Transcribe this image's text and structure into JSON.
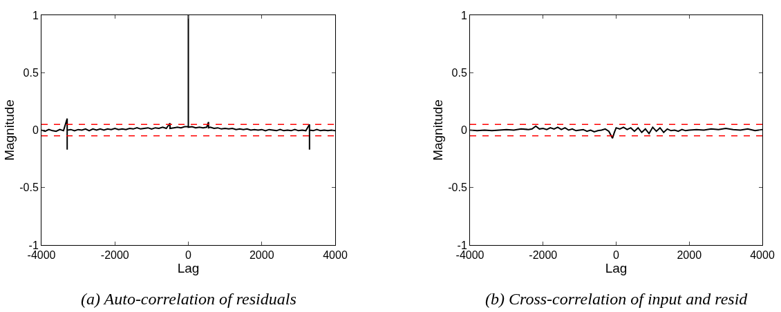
{
  "chart_data": [
    {
      "type": "line",
      "xlabel": "Lag",
      "ylabel": "Magnitude",
      "xlim": [
        -4000,
        4000
      ],
      "ylim": [
        -1,
        1
      ],
      "xticks": [
        -4000,
        -2000,
        0,
        2000,
        4000
      ],
      "yticks": [
        -1,
        -0.5,
        0,
        0.5,
        1
      ],
      "grid": false,
      "marker": "none",
      "line_style": "solid",
      "series": [
        {
          "color": "#000000",
          "x": [
            -4000,
            -3900,
            -3800,
            -3700,
            -3600,
            -3500,
            -3400,
            -3300,
            -3300,
            -3300,
            -3200,
            -3100,
            -3000,
            -2900,
            -2800,
            -2700,
            -2600,
            -2500,
            -2400,
            -2300,
            -2200,
            -2100,
            -2000,
            -1900,
            -1800,
            -1700,
            -1600,
            -1500,
            -1400,
            -1300,
            -1200,
            -1100,
            -1000,
            -900,
            -800,
            -700,
            -600,
            -500,
            -500,
            -400,
            -300,
            -200,
            -100,
            0,
            0,
            0,
            100,
            200,
            300,
            400,
            500,
            550,
            550,
            600,
            700,
            800,
            900,
            1000,
            1100,
            1200,
            1300,
            1400,
            1500,
            1600,
            1700,
            1800,
            1900,
            2000,
            2100,
            2200,
            2300,
            2400,
            2500,
            2600,
            2700,
            2800,
            2900,
            3000,
            3100,
            3200,
            3300,
            3300,
            3300,
            3400,
            3500,
            3600,
            3700,
            3800,
            3900,
            4000
          ],
          "values": [
            0,
            -0.01,
            0.005,
            -0.005,
            -0.01,
            0.005,
            -0.005,
            0.1,
            -0.17,
            0,
            0.005,
            -0.005,
            0.005,
            0,
            0.01,
            -0.005,
            0.01,
            0,
            0.01,
            0,
            0.01,
            0.005,
            0.015,
            0.005,
            0.01,
            0.005,
            0.015,
            0.01,
            0.02,
            0.01,
            0.015,
            0.02,
            0.01,
            0.02,
            0.015,
            0.025,
            0.015,
            0.06,
            0.015,
            0.02,
            0.025,
            0.02,
            0.03,
            0.03,
            1,
            0.025,
            0.03,
            0.02,
            0.025,
            0.02,
            0.025,
            0.07,
            0.02,
            0.025,
            0.015,
            0.02,
            0.01,
            0.015,
            0.01,
            0.015,
            0.005,
            0.01,
            0.005,
            0.01,
            0,
            0.005,
            0,
            0.005,
            -0.005,
            0.005,
            0,
            -0.005,
            0.005,
            -0.005,
            0,
            -0.005,
            0.005,
            -0.005,
            0,
            -0.005,
            0.05,
            -0.17,
            0,
            -0.005,
            0.005,
            -0.005,
            0,
            -0.005,
            0,
            -0.005
          ]
        }
      ],
      "ref_lines": [
        {
          "axis": "y",
          "value": 0.05,
          "color": "#ff0000",
          "line_style": "dashed"
        },
        {
          "axis": "y",
          "value": -0.05,
          "color": "#ff0000",
          "line_style": "dashed"
        }
      ],
      "annotations": [
        "(a) Auto-correlation of residuals"
      ]
    },
    {
      "type": "line",
      "xlabel": "Lag",
      "ylabel": "Magnitude",
      "xlim": [
        -4000,
        4000
      ],
      "ylim": [
        -1,
        1
      ],
      "xticks": [
        -4000,
        -2000,
        0,
        2000,
        4000
      ],
      "yticks": [
        -1,
        -0.5,
        0,
        0.5,
        1
      ],
      "grid": false,
      "marker": "none",
      "line_style": "solid",
      "series": [
        {
          "color": "#000000",
          "x": [
            -4000,
            -3800,
            -3600,
            -3400,
            -3200,
            -3000,
            -2800,
            -2600,
            -2400,
            -2300,
            -2200,
            -2100,
            -2000,
            -1900,
            -1800,
            -1700,
            -1600,
            -1500,
            -1400,
            -1300,
            -1200,
            -1100,
            -1000,
            -900,
            -800,
            -700,
            -600,
            -500,
            -400,
            -300,
            -200,
            -150,
            -100,
            -50,
            0,
            100,
            200,
            300,
            400,
            500,
            600,
            700,
            800,
            900,
            1000,
            1100,
            1200,
            1300,
            1400,
            1500,
            1600,
            1700,
            1800,
            1900,
            2000,
            2200,
            2400,
            2600,
            2800,
            3000,
            3200,
            3400,
            3600,
            3800,
            4000
          ],
          "values": [
            0,
            -0.005,
            0,
            -0.005,
            0,
            0.005,
            0,
            0.01,
            0.005,
            0.01,
            0.035,
            0.01,
            0.015,
            0.005,
            0.02,
            0.01,
            0.025,
            0.005,
            0.02,
            0,
            0.01,
            -0.005,
            0,
            0.005,
            -0.01,
            0,
            -0.015,
            -0.005,
            0,
            0.01,
            -0.01,
            -0.04,
            -0.07,
            -0.02,
            0.02,
            0.01,
            0.025,
            0.005,
            0.02,
            -0.01,
            0.02,
            -0.02,
            0.01,
            -0.03,
            0.025,
            -0.01,
            0.02,
            -0.02,
            0.01,
            -0.005,
            0,
            -0.01,
            0.005,
            -0.005,
            0,
            0.005,
            0,
            0.01,
            0.005,
            0.015,
            0.005,
            0,
            0.01,
            -0.005,
            0.005
          ]
        }
      ],
      "ref_lines": [
        {
          "axis": "y",
          "value": 0.05,
          "color": "#ff0000",
          "line_style": "dashed"
        },
        {
          "axis": "y",
          "value": -0.05,
          "color": "#ff0000",
          "line_style": "dashed"
        }
      ],
      "annotations": [
        "(b) Cross-correlation of input and resid"
      ]
    }
  ]
}
